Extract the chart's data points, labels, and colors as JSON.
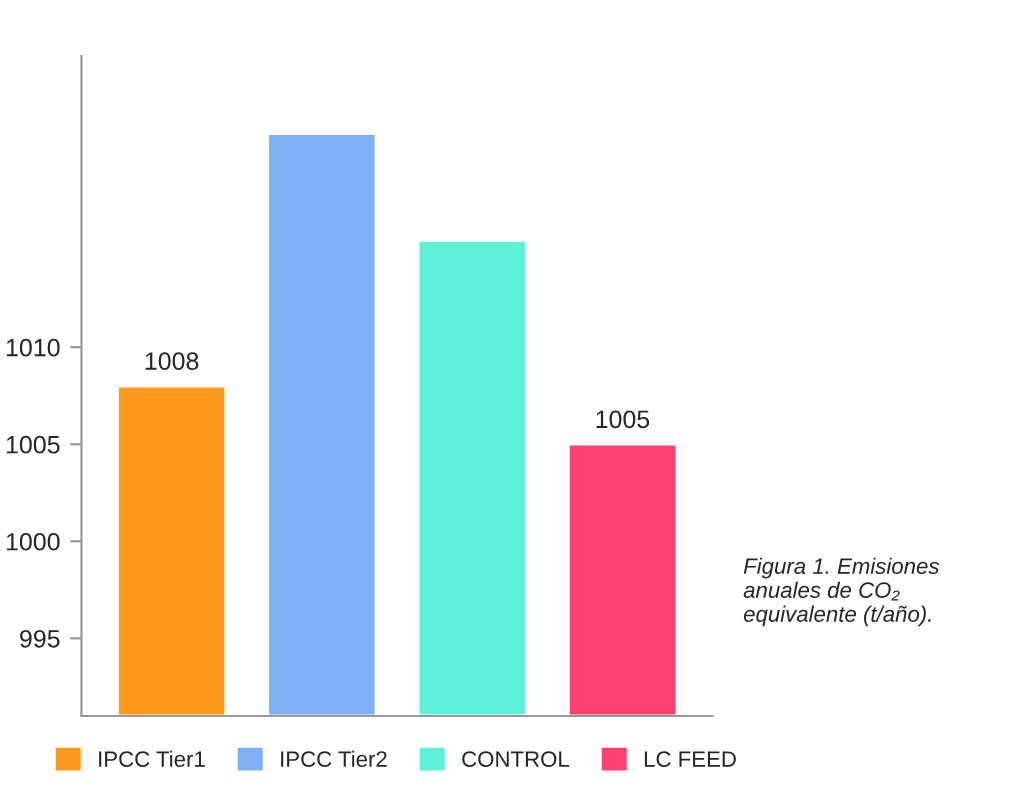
{
  "chart_data": {
    "type": "bar",
    "categories": [
      null,
      null,
      null,
      null
    ],
    "series": [
      {
        "name": "IPCC Tier1",
        "color": "#ff9a1f",
        "values": [
          1008,
          null,
          null,
          null
        ],
        "value_labels": [
          "1008",
          null,
          null,
          null
        ]
      },
      {
        "name": "IPCC Tier2",
        "color": "#7fb0f5",
        "values": [
          null,
          1021,
          null,
          null
        ]
      },
      {
        "name": "CONTROL",
        "color": "#5ff0d8",
        "values": [
          null,
          null,
          1015.5,
          null
        ]
      },
      {
        "name": "LC FEED",
        "color": "#ff4070",
        "values": [
          null,
          null,
          null,
          1005
        ],
        "value_labels": [
          null,
          null,
          null,
          "1005"
        ]
      }
    ],
    "ylim": [
      991,
      1025
    ],
    "yticks": [
      995,
      1000,
      1005,
      1010
    ],
    "tick_labels": "y",
    "legend": "bottom",
    "grid": false,
    "annotations": [
      "Figura 1. Emisiones anuales de CO₂ equivalente (t/año)."
    ]
  }
}
